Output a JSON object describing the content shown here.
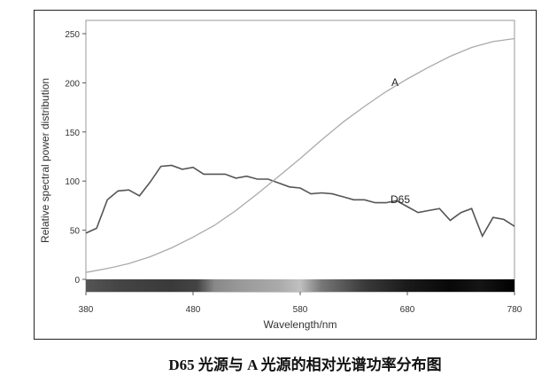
{
  "chart_data": {
    "type": "line",
    "xlabel": "Wavelength/nm",
    "ylabel": "Relative spectral power distribution",
    "xlim": [
      380,
      780
    ],
    "ylim": [
      0,
      250
    ],
    "xticks": [
      380,
      480,
      580,
      680,
      780
    ],
    "yticks": [
      0,
      50,
      100,
      150,
      200,
      250
    ],
    "grid": false,
    "legend": "inline labels",
    "colorbar": "visible spectrum strip (grayscale) along x-axis",
    "series": [
      {
        "name": "D65",
        "color": "#555555",
        "x": [
          380,
          390,
          400,
          410,
          420,
          430,
          440,
          450,
          460,
          470,
          480,
          490,
          500,
          510,
          520,
          530,
          540,
          550,
          560,
          570,
          580,
          590,
          600,
          610,
          620,
          630,
          640,
          650,
          660,
          670,
          680,
          690,
          700,
          710,
          720,
          730,
          740,
          745,
          750,
          760,
          770,
          780
        ],
        "y": [
          47,
          52,
          81,
          90,
          91,
          85,
          99,
          115,
          116,
          112,
          114,
          107,
          107,
          107,
          103,
          105,
          102,
          102,
          98,
          94,
          93,
          87,
          88,
          87,
          84,
          81,
          81,
          78,
          78,
          80,
          74,
          68,
          70,
          72,
          60,
          68,
          72,
          58,
          44,
          63,
          61,
          54
        ]
      },
      {
        "name": "A",
        "color": "#aaaaaa",
        "x": [
          380,
          400,
          420,
          440,
          460,
          480,
          500,
          520,
          540,
          560,
          580,
          600,
          620,
          640,
          660,
          680,
          700,
          720,
          740,
          760,
          780
        ],
        "y": [
          7,
          11,
          16,
          23,
          32,
          43,
          55,
          70,
          87,
          105,
          123,
          142,
          160,
          176,
          191,
          204,
          216,
          227,
          236,
          242,
          245
        ]
      }
    ],
    "caption": "D65 光源与 A 光源的相对光谱功率分布图"
  }
}
